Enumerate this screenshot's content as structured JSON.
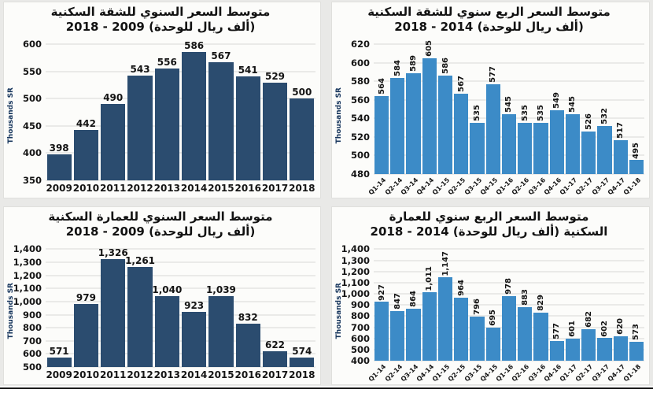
{
  "page": {
    "background_color": "#e9e9e7",
    "panel_color": "#fcfcfa",
    "divider_color": "#1b1b1b",
    "axis_title_color": "#17365d"
  },
  "chart_data": [
    {
      "type": "bar",
      "title_line1": "متوسط السعر السنوي للشقة السكنية",
      "title_line2": "(ألف ريال للوحدة)  2009 - 2018",
      "ylabel": "Thousands SR",
      "categories": [
        "2009",
        "2010",
        "2011",
        "2012",
        "2013",
        "2014",
        "2015",
        "2016",
        "2017",
        "2018"
      ],
      "values": [
        398,
        442,
        490,
        543,
        556,
        586,
        567,
        541,
        529,
        500
      ],
      "ylim": [
        350,
        600
      ],
      "ytick_step": 50,
      "bar_color": "#2B4C6F",
      "grid": true,
      "legend": "none",
      "value_label_orientation": "horizontal",
      "xtick_rotation": 0
    },
    {
      "type": "bar",
      "title_line1": "متوسط السعر الربع سنوي للشقة السكنية",
      "title_line2": "(ألف ريال للوحدة) 2014 - 2018",
      "ylabel": "Thousands SR",
      "categories": [
        "Q1-14",
        "Q2-14",
        "Q3-14",
        "Q4-14",
        "Q1-15",
        "Q2-15",
        "Q3-15",
        "Q4-15",
        "Q1-16",
        "Q2-16",
        "Q3-16",
        "Q4-16",
        "Q1-17",
        "Q2-17",
        "Q3-17",
        "Q4-17",
        "Q1-18"
      ],
      "values": [
        564,
        584,
        589,
        605,
        586,
        567,
        535,
        577,
        545,
        535,
        535,
        549,
        545,
        526,
        532,
        517,
        495
      ],
      "ylim": [
        480,
        620
      ],
      "ytick_step": 20,
      "bar_color": "#3C8BC7",
      "grid": true,
      "legend": "none",
      "value_label_orientation": "vertical",
      "xtick_rotation": -45
    },
    {
      "type": "bar",
      "title_line1": "متوسط السعر السنوي للعمارة السكنية",
      "title_line2": "(ألف ريال للوحدة)  2009 - 2018",
      "ylabel": "Thousands SR",
      "categories": [
        "2009",
        "2010",
        "2011",
        "2012",
        "2013",
        "2014",
        "2015",
        "2016",
        "2017",
        "2018"
      ],
      "values": [
        571,
        979,
        1326,
        1261,
        1040,
        923,
        1039,
        832,
        622,
        574
      ],
      "ylim": [
        500,
        1400
      ],
      "ytick_step": 100,
      "bar_color": "#2B4C6F",
      "grid": true,
      "legend": "none",
      "value_label_orientation": "horizontal",
      "xtick_rotation": 0
    },
    {
      "type": "bar",
      "title_line1": "متوسط السعر الربع سنوي للعمارة",
      "title_line2": "السكنية (ألف ريال للوحدة) 2014 - 2018",
      "ylabel": "Thousands SR",
      "categories": [
        "Q1-14",
        "Q2-14",
        "Q3-14",
        "Q4-14",
        "Q1-15",
        "Q2-15",
        "Q3-15",
        "Q4-15",
        "Q1-16",
        "Q2-16",
        "Q3-16",
        "Q4-16",
        "Q1-17",
        "Q2-17",
        "Q3-17",
        "Q4-17",
        "Q1-18"
      ],
      "values": [
        927,
        847,
        864,
        1011,
        1147,
        964,
        796,
        695,
        978,
        883,
        829,
        577,
        601,
        682,
        602,
        620,
        573
      ],
      "ylim": [
        400,
        1400
      ],
      "ytick_step": 100,
      "bar_color": "#3C8BC7",
      "grid": true,
      "legend": "none",
      "value_label_orientation": "vertical",
      "xtick_rotation": -45
    }
  ]
}
